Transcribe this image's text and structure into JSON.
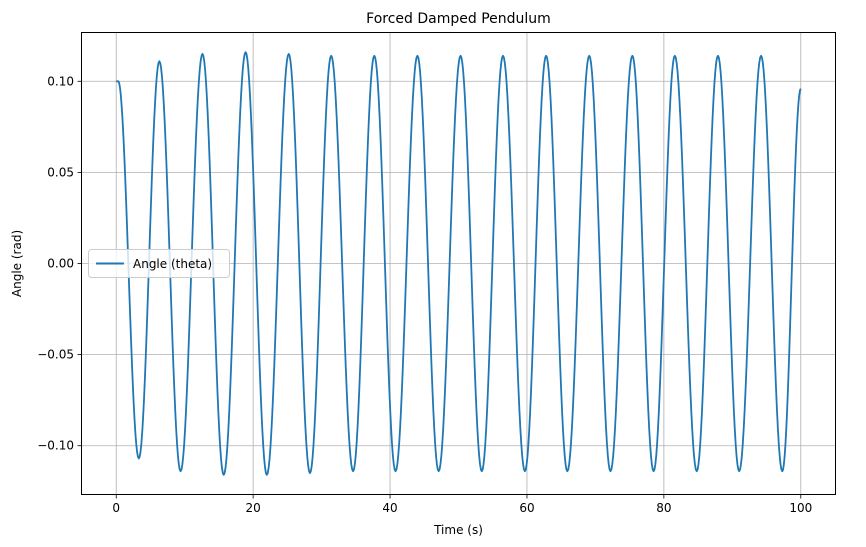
{
  "chart_data": {
    "type": "line",
    "title": "Forced Damped Pendulum",
    "xlabel": "Time (s)",
    "ylabel": "Angle (rad)",
    "xlim": [
      -5,
      105
    ],
    "ylim": [
      -0.1265,
      0.1265
    ],
    "x_ticks": [
      0,
      20,
      40,
      60,
      80,
      100
    ],
    "x_tick_labels": [
      "0",
      "20",
      "40",
      "60",
      "80",
      "100"
    ],
    "y_ticks": [
      0.1,
      0.05,
      0.0,
      -0.05,
      -0.1
    ],
    "y_tick_labels": [
      "0.10",
      "0.05",
      "0.00",
      "−0.05",
      "−0.10"
    ],
    "grid": true,
    "legend": "center-left",
    "series": [
      {
        "name": "Angle (theta)",
        "color": "#1f77b4",
        "x_range": [
          0,
          100
        ],
        "initial_value": 0.1,
        "period": 6.28,
        "steady_amplitude": 0.114,
        "extrema": [
          {
            "x": 0.3,
            "y": 0.1
          },
          {
            "x": 3.3,
            "y": -0.107
          },
          {
            "x": 6.3,
            "y": 0.111
          },
          {
            "x": 9.4,
            "y": -0.114
          },
          {
            "x": 12.6,
            "y": 0.115
          },
          {
            "x": 15.7,
            "y": -0.116
          },
          {
            "x": 18.9,
            "y": 0.116
          },
          {
            "x": 22.0,
            "y": -0.116
          },
          {
            "x": 25.2,
            "y": 0.115
          },
          {
            "x": 28.3,
            "y": -0.115
          },
          {
            "x": 31.4,
            "y": 0.114
          },
          {
            "x": 34.6,
            "y": -0.114
          },
          {
            "x": 37.7,
            "y": 0.114
          },
          {
            "x": 40.8,
            "y": -0.114
          },
          {
            "x": 44.0,
            "y": 0.114
          },
          {
            "x": 47.1,
            "y": -0.114
          },
          {
            "x": 50.3,
            "y": 0.114
          },
          {
            "x": 53.4,
            "y": -0.114
          },
          {
            "x": 56.5,
            "y": 0.114
          },
          {
            "x": 59.7,
            "y": -0.114
          },
          {
            "x": 62.8,
            "y": 0.114
          },
          {
            "x": 65.9,
            "y": -0.114
          },
          {
            "x": 69.1,
            "y": 0.114
          },
          {
            "x": 72.2,
            "y": -0.114
          },
          {
            "x": 75.4,
            "y": 0.114
          },
          {
            "x": 78.5,
            "y": -0.114
          },
          {
            "x": 81.6,
            "y": 0.114
          },
          {
            "x": 84.8,
            "y": -0.114
          },
          {
            "x": 87.9,
            "y": 0.114
          },
          {
            "x": 91.0,
            "y": -0.114
          },
          {
            "x": 94.2,
            "y": 0.114
          },
          {
            "x": 97.3,
            "y": -0.114
          },
          {
            "x": 100.0,
            "y": 0.096
          }
        ]
      }
    ]
  }
}
